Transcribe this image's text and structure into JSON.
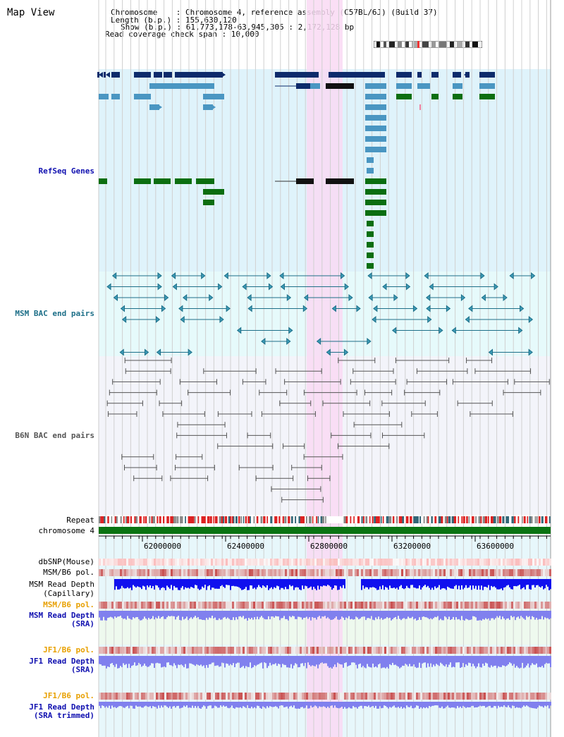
{
  "title": "Map View",
  "info": {
    "chromosome": "Chromosome    : Chromosome 4, reference assembly (C57BL/6J) (Build 37)",
    "length": "Length (b.p.) : 155,630,120",
    "show": "Show (b.p.) : 61,773,178-63,945,305 : 2,172,128 bp",
    "coverage": "Read coverage check span : 10,000"
  },
  "tracks": {
    "refseq": "RefSeq Genes",
    "msm_bac": "MSM BAC end pairs",
    "b6n_bac": "B6N BAC end pairs",
    "repeat": "Repeat",
    "chromosome": "chromosome 4",
    "dbsnp": "dbSNP(Mouse)",
    "msm_b6_pol": "MSM/B6 pol.",
    "msm_read_depth_cap_1": "MSM Read Depth",
    "msm_read_depth_cap_2": "(Capillary)",
    "msm_b6_pol_2": "MSM/B6 pol.",
    "msm_read_depth_sra_1": "MSM Read Depth",
    "msm_read_depth_sra_2": "(SRA)",
    "jf1_b6_pol": "JF1/B6 pol.",
    "jf1_read_depth_sra_1": "JF1 Read Depth",
    "jf1_read_depth_sra_2": "(SRA)",
    "jf1_b6_pol_2": "JF1/B6 pol.",
    "jf1_read_depth_trim_1": "JF1 Read Depth",
    "jf1_read_depth_trim_2": "(SRA trimmed)"
  },
  "axis": {
    "ticks": [
      "62000000",
      "62400000",
      "62800000",
      "63200000",
      "63600000"
    ]
  },
  "colors": {
    "refseq_bg": "#dff3fb",
    "msm_bg": "#e6fafb",
    "b6n_bg": "#f3f4fa",
    "highlight": "#f9d9f3",
    "gene_dark": "#0d2b6b",
    "gene_mid": "#4a96c2",
    "gene_green": "#0b6e10",
    "msm_pair": "#1d6f88",
    "b6n_pair": "#555555",
    "chrom_bar": "#0a7312",
    "depth_cap": "#1010ee",
    "depth_sra": "#8080ee"
  }
}
